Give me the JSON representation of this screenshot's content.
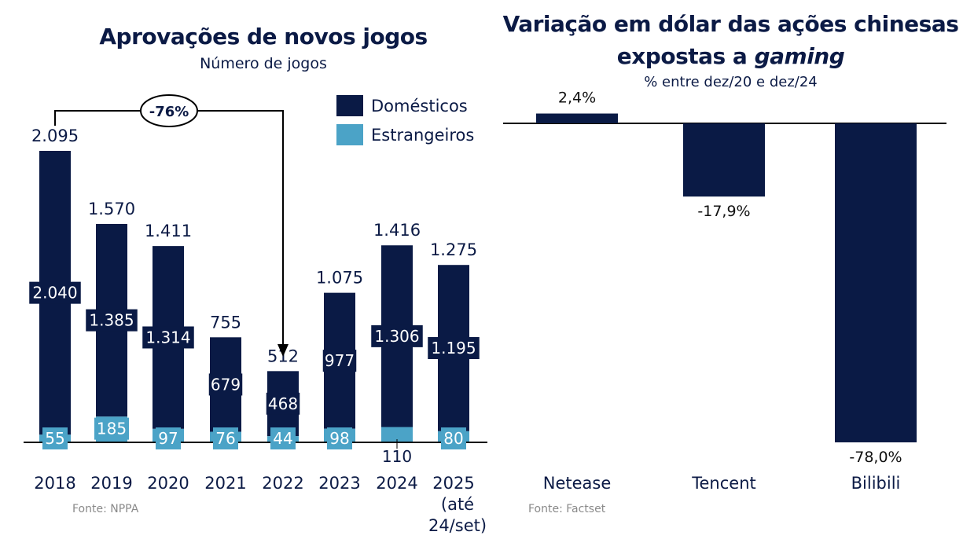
{
  "colors": {
    "domestic": "#0a1a45",
    "foreign": "#4ba3c7",
    "text": "#0b1a45",
    "source": "#8a8a8a"
  },
  "left": {
    "title": "Aprovações de novos jogos",
    "subtitle": "Número de jogos",
    "source": "Fonte: NPPA",
    "annotation": "-76%",
    "legend": [
      {
        "label": "Domésticos",
        "key": "domestic"
      },
      {
        "label": "Estrangeiros",
        "key": "foreign"
      }
    ]
  },
  "right": {
    "title_line1": "Variação em dólar das ações chinesas",
    "title_line2_plain": "expostas a ",
    "title_line2_italic": "gaming",
    "subtitle": "% entre dez/20 e dez/24",
    "source": "Fonte: Factset"
  },
  "chart_data": [
    {
      "type": "bar",
      "stacked": true,
      "title": "Aprovações de novos jogos",
      "subtitle": "Número de jogos",
      "categories": [
        "2018",
        "2019",
        "2020",
        "2021",
        "2022",
        "2023",
        "2024",
        "2025 (até 24/set)"
      ],
      "category_lines": [
        [
          "2018"
        ],
        [
          "2019"
        ],
        [
          "2020"
        ],
        [
          "2021"
        ],
        [
          "2022"
        ],
        [
          "2023"
        ],
        [
          "2024"
        ],
        [
          "2025",
          "(até",
          "24/set)"
        ]
      ],
      "series": [
        {
          "name": "Estrangeiros",
          "values": [
            55,
            185,
            97,
            76,
            44,
            98,
            110,
            80
          ],
          "labels": [
            "55",
            "185",
            "97",
            "76",
            "44",
            "98",
            "110",
            "80"
          ]
        },
        {
          "name": "Domésticos",
          "values": [
            2040,
            1385,
            1314,
            679,
            468,
            977,
            1306,
            1195
          ],
          "labels": [
            "2.040",
            "1.385",
            "1.314",
            "679",
            "468",
            "977",
            "1.306",
            "1.195"
          ]
        }
      ],
      "totals": [
        2095,
        1570,
        1411,
        755,
        512,
        1075,
        1416,
        1275
      ],
      "total_labels": [
        "2.095",
        "1.570",
        "1.411",
        "755",
        "512",
        "1.075",
        "1.416",
        "1.275"
      ],
      "annotation": {
        "text": "-76%",
        "from": "2018",
        "to": "2022"
      },
      "ylim": [
        0,
        2100
      ],
      "grid": false,
      "legend": "top-right"
    },
    {
      "type": "bar",
      "title": "Variação em dólar das ações chinesas expostas a gaming",
      "subtitle": "% entre dez/20 e dez/24",
      "categories": [
        "Netease",
        "Tencent",
        "Bilibili"
      ],
      "values": [
        2.4,
        -17.9,
        -78.0
      ],
      "labels": [
        "2,4%",
        "-17,9%",
        "-78,0%"
      ],
      "ylim": [
        -78,
        3
      ],
      "grid": false
    }
  ]
}
